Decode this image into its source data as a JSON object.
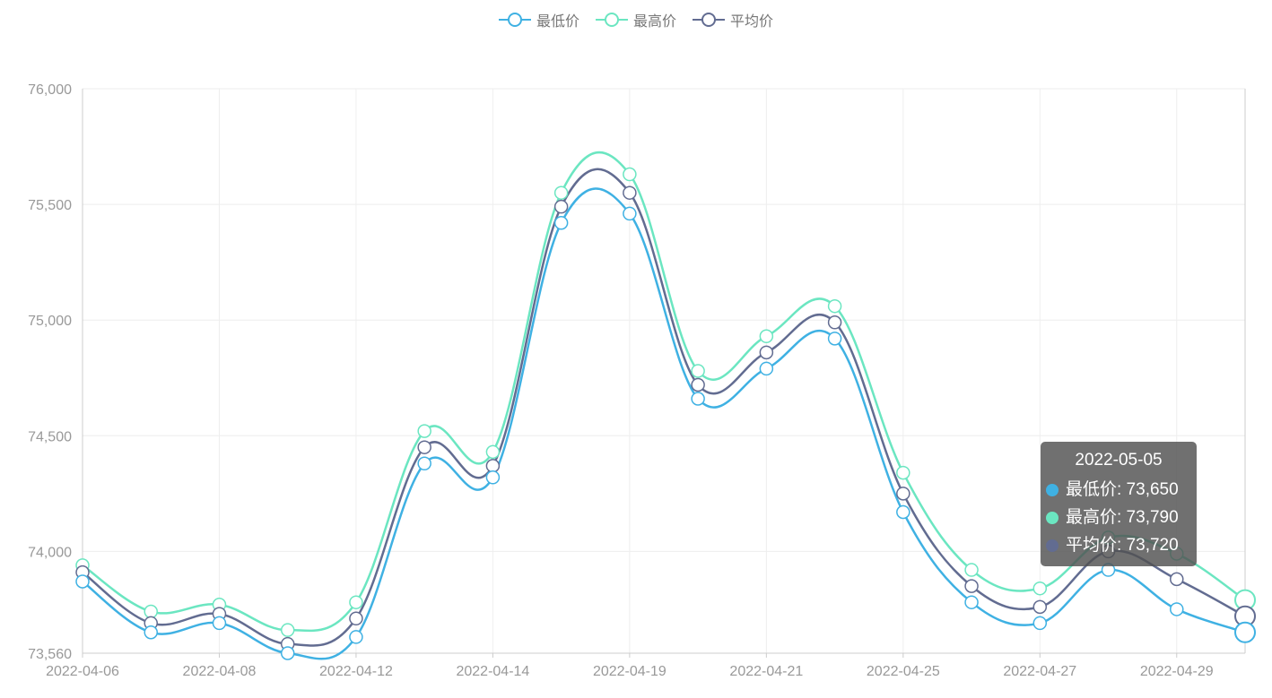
{
  "legend": [
    {
      "name": "最低价",
      "color": "#3fb1e3"
    },
    {
      "name": "最高价",
      "color": "#6be6c1"
    },
    {
      "name": "平均价",
      "color": "#626c91"
    }
  ],
  "tooltip": {
    "title": "2022-05-05",
    "rows": [
      {
        "label": "最低价: 73,650",
        "color": "#3fb1e3"
      },
      {
        "label": "最高价: 73,790",
        "color": "#6be6c1"
      },
      {
        "label": "平均价: 73,720",
        "color": "#626c91"
      }
    ]
  },
  "chart_data": {
    "type": "line",
    "title": "",
    "xlabel": "",
    "ylabel": "",
    "ylim": [
      73560,
      76000
    ],
    "yticks": [
      "73,560",
      "74,000",
      "74,500",
      "75,000",
      "75,500",
      "76,000"
    ],
    "ytick_values": [
      73560,
      74000,
      74500,
      75000,
      75500,
      76000
    ],
    "x_tick_labels": [
      "2022-04-06",
      "2022-04-08",
      "2022-04-12",
      "2022-04-14",
      "2022-04-19",
      "2022-04-21",
      "2022-04-25",
      "2022-04-27",
      "2022-04-29"
    ],
    "x": [
      "2022-04-06",
      "2022-04-07",
      "2022-04-08",
      "2022-04-11",
      "2022-04-12",
      "2022-04-13",
      "2022-04-14",
      "2022-04-15",
      "2022-04-19",
      "2022-04-20",
      "2022-04-21",
      "2022-04-22",
      "2022-04-25",
      "2022-04-26",
      "2022-04-27",
      "2022-04-28",
      "2022-04-29",
      "2022-05-05"
    ],
    "series": [
      {
        "name": "最低价",
        "color": "#3fb1e3",
        "values": [
          73870,
          73650,
          73690,
          73560,
          73630,
          74380,
          74320,
          75420,
          75460,
          74660,
          74790,
          74920,
          74170,
          73780,
          73690,
          73920,
          73750,
          73650
        ]
      },
      {
        "name": "最高价",
        "color": "#6be6c1",
        "values": [
          73940,
          73740,
          73770,
          73660,
          73780,
          74520,
          74430,
          75550,
          75630,
          74780,
          74930,
          75060,
          74340,
          73920,
          73840,
          74060,
          73990,
          73790
        ]
      },
      {
        "name": "平均价",
        "color": "#626c91",
        "values": [
          73910,
          73690,
          73730,
          73600,
          73710,
          74450,
          74370,
          75490,
          75550,
          74720,
          74860,
          74990,
          74250,
          73850,
          73760,
          74000,
          73880,
          73720
        ]
      }
    ],
    "grid": true,
    "legend_position": "top-center"
  }
}
